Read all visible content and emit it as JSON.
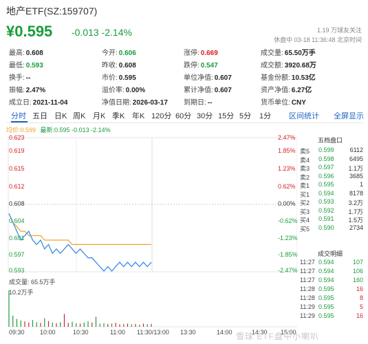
{
  "header": {
    "title": "地产ETF(SZ:159707)",
    "price": "¥0.595",
    "change": "-0.013 -2.14%",
    "followers": "1.19 万球友关注",
    "status": "休盘中 03-18 11:36:48 北京时间"
  },
  "stats": [
    {
      "label": "最高:",
      "value": "0.608",
      "color": ""
    },
    {
      "label": "今开:",
      "value": "0.606",
      "color": "green"
    },
    {
      "label": "涨停:",
      "value": "0.669",
      "color": "red"
    },
    {
      "label": "成交量:",
      "value": "65.50万手",
      "color": ""
    },
    {
      "label": "最低:",
      "value": "0.593",
      "color": "green"
    },
    {
      "label": "昨收:",
      "value": "0.608",
      "color": ""
    },
    {
      "label": "跌停:",
      "value": "0.547",
      "color": "green"
    },
    {
      "label": "成交额:",
      "value": "3920.68万",
      "color": ""
    },
    {
      "label": "换手:",
      "value": "--",
      "color": ""
    },
    {
      "label": "市价:",
      "value": "0.595",
      "color": ""
    },
    {
      "label": "单位净值:",
      "value": "0.607",
      "color": ""
    },
    {
      "label": "基金份额:",
      "value": "10.53亿",
      "color": ""
    },
    {
      "label": "振幅:",
      "value": "2.47%",
      "color": ""
    },
    {
      "label": "溢价率:",
      "value": "0.00%",
      "color": ""
    },
    {
      "label": "累计净值:",
      "value": "0.607",
      "color": ""
    },
    {
      "label": "资产净值:",
      "value": "6.27亿",
      "color": ""
    },
    {
      "label": "成立日:",
      "value": "2021-11-04",
      "color": ""
    },
    {
      "label": "净值日期:",
      "value": "2026-03-17",
      "color": ""
    },
    {
      "label": "到期日:",
      "value": "--",
      "color": ""
    },
    {
      "label": "货币单位:",
      "value": "CNY",
      "color": ""
    }
  ],
  "tabs": [
    "分时",
    "五日",
    "日K",
    "周K",
    "月K",
    "季K",
    "年K",
    "120分",
    "60分",
    "30分",
    "15分",
    "5分",
    "1分"
  ],
  "active_tab": "分时",
  "header_links": {
    "info": "区间统计",
    "fullscreen": "全屏显示"
  },
  "legend": {
    "avg": "均价:0.599",
    "latest": "最新:0.595 -0.013 -2.14%"
  },
  "y_left": [
    "0.623",
    "0.619",
    "0.615",
    "0.612",
    "0.608",
    "0.604",
    "0.601",
    "0.597",
    "0.593"
  ],
  "y_right": [
    "2.47%",
    "1.85%",
    "1.23%",
    "0.62%",
    "0.00%",
    "-0.62%",
    "-1.23%",
    "-1.85%",
    "-2.47%"
  ],
  "volume": {
    "label": "成交量: 65.5万手",
    "max_label": "10.2万手"
  },
  "time_labels": [
    "09:30",
    "10:00",
    "10:30",
    "11:00",
    "11:30/13:00",
    "13:30",
    "14:00",
    "14:30",
    "15:00"
  ],
  "order_book": {
    "title": "五档盘口",
    "rows": [
      {
        "label": "卖5",
        "price": "0.599",
        "vol": "6112"
      },
      {
        "label": "卖4",
        "price": "0.598",
        "vol": "6495"
      },
      {
        "label": "卖3",
        "price": "0.597",
        "vol": "1.1万"
      },
      {
        "label": "卖2",
        "price": "0.596",
        "vol": "3685"
      },
      {
        "label": "卖1",
        "price": "0.595",
        "vol": "1"
      },
      {
        "label": "买1",
        "price": "0.594",
        "vol": "8178"
      },
      {
        "label": "买2",
        "price": "0.593",
        "vol": "3.2万"
      },
      {
        "label": "买3",
        "price": "0.592",
        "vol": "1.7万"
      },
      {
        "label": "买4",
        "price": "0.591",
        "vol": "1.5万"
      },
      {
        "label": "买5",
        "price": "0.590",
        "vol": "2734"
      }
    ]
  },
  "trades": {
    "title": "成交明细",
    "rows": [
      {
        "time": "11:27",
        "price": "0.594",
        "vol": "107",
        "color": "green"
      },
      {
        "time": "11:27",
        "price": "0.594",
        "vol": "106",
        "color": "green"
      },
      {
        "time": "11:27",
        "price": "0.594",
        "vol": "160",
        "color": "green"
      },
      {
        "time": "11:28",
        "price": "0.595",
        "vol": "16",
        "color": "red"
      },
      {
        "time": "11:28",
        "price": "0.595",
        "vol": "8",
        "color": "red"
      },
      {
        "time": "11:29",
        "price": "0.595",
        "vol": "5",
        "color": "red"
      },
      {
        "time": "11:29",
        "price": "0.595",
        "vol": "16",
        "color": "red"
      }
    ]
  },
  "chart_data": {
    "type": "line",
    "y_range": [
      0.593,
      0.623
    ],
    "prev_close": 0.608,
    "price_series": [
      0.606,
      0.604,
      0.602,
      0.6,
      0.601,
      0.602,
      0.6,
      0.599,
      0.6,
      0.598,
      0.599,
      0.597,
      0.598,
      0.597,
      0.598,
      0.599,
      0.598,
      0.597,
      0.598,
      0.597,
      0.596,
      0.596,
      0.595,
      0.594,
      0.593,
      0.594,
      0.593,
      0.594,
      0.595,
      0.594,
      0.595,
      0.594,
      0.595,
      0.594,
      0.595,
      0.594,
      0.595
    ],
    "avg_series": [
      0.606,
      0.604,
      0.603,
      0.602,
      0.602,
      0.601,
      0.601,
      0.601,
      0.601,
      0.6,
      0.6,
      0.6,
      0.6,
      0.6,
      0.6,
      0.6,
      0.599,
      0.599,
      0.599,
      0.599,
      0.599,
      0.599,
      0.599,
      0.599,
      0.599,
      0.599,
      0.599,
      0.599,
      0.599,
      0.599,
      0.599,
      0.599,
      0.599,
      0.599,
      0.599,
      0.599,
      0.599
    ],
    "volume_series": [
      10.2,
      3.1,
      2.2,
      1.8,
      1.5,
      1.2,
      1.9,
      1.3,
      1.1,
      2.4,
      1.6,
      1.2,
      1.0,
      1.3,
      3.6,
      1.1,
      1.4,
      1.0,
      0.9,
      1.2,
      1.5,
      1.2,
      2.8,
      0.9,
      1.0,
      0.8,
      0.9,
      1.1,
      0.7,
      0.8,
      0.9,
      0.7,
      0.8,
      0.6,
      0.9,
      0.7,
      0.8
    ],
    "volume_max": 10.2,
    "volume_unit": "万手"
  },
  "watermark": "雪球 ETF盘中小喇叭",
  "colors": {
    "up": "#d2232a",
    "down": "#1a9b3c",
    "accent": "#1f63c6",
    "price_line": "#3a8ee6",
    "avg_line": "#f0a030"
  }
}
